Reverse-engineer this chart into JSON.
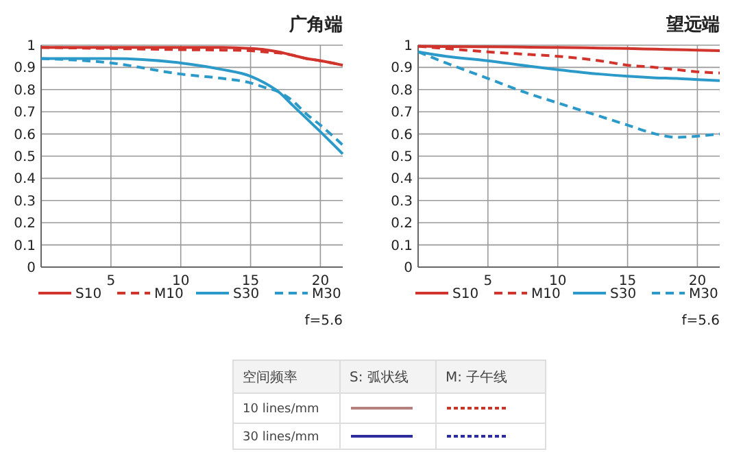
{
  "chart_data": [
    {
      "type": "line",
      "title": "广角端",
      "annotations": [
        "f=5.6"
      ],
      "x": [
        0,
        5,
        10,
        13,
        15,
        16,
        17,
        18,
        19,
        20,
        21.6
      ],
      "xlim": [
        0,
        21.6
      ],
      "xticks": [
        5,
        10,
        15,
        20
      ],
      "ylim": [
        0,
        1
      ],
      "yticks": [
        0,
        0.1,
        0.2,
        0.3,
        0.4,
        0.5,
        0.6,
        0.7,
        0.8,
        0.9,
        1
      ],
      "grid": true,
      "legend": "bottom",
      "series": [
        {
          "name": "S10",
          "color": "#d0342c",
          "line_style": "solid",
          "values": [
            0.99,
            0.99,
            0.99,
            0.99,
            0.985,
            0.98,
            0.97,
            0.955,
            0.94,
            0.93,
            0.91
          ]
        },
        {
          "name": "M10",
          "color": "#d0342c",
          "line_style": "dashed",
          "values": [
            0.99,
            0.985,
            0.98,
            0.978,
            0.975,
            0.97,
            0.965,
            0.955,
            0.94,
            0.93,
            0.91
          ]
        },
        {
          "name": "S30",
          "color": "#2b9ac9",
          "line_style": "solid",
          "values": [
            0.94,
            0.94,
            0.92,
            0.89,
            0.86,
            0.83,
            0.79,
            0.73,
            0.67,
            0.61,
            0.51
          ]
        },
        {
          "name": "M30",
          "color": "#2b9ac9",
          "line_style": "dashed",
          "values": [
            0.94,
            0.92,
            0.87,
            0.85,
            0.83,
            0.81,
            0.79,
            0.75,
            0.69,
            0.64,
            0.55
          ]
        }
      ]
    },
    {
      "type": "line",
      "title": "望远端",
      "annotations": [
        "f=5.6"
      ],
      "x": [
        0,
        2,
        5,
        8,
        10,
        13,
        15,
        17,
        18.5,
        20,
        21.6
      ],
      "xlim": [
        0,
        21.6
      ],
      "xticks": [
        5,
        10,
        15,
        20
      ],
      "ylim": [
        0,
        1
      ],
      "yticks": [
        0,
        0.1,
        0.2,
        0.3,
        0.4,
        0.5,
        0.6,
        0.7,
        0.8,
        0.9,
        1
      ],
      "grid": true,
      "legend": "bottom",
      "series": [
        {
          "name": "S10",
          "color": "#d0342c",
          "line_style": "solid",
          "values": [
            0.995,
            0.994,
            0.993,
            0.991,
            0.99,
            0.987,
            0.985,
            0.982,
            0.98,
            0.978,
            0.975
          ]
        },
        {
          "name": "M10",
          "color": "#d0342c",
          "line_style": "dashed",
          "values": [
            0.995,
            0.985,
            0.97,
            0.958,
            0.95,
            0.93,
            0.91,
            0.9,
            0.89,
            0.88,
            0.875
          ]
        },
        {
          "name": "S30",
          "color": "#2b9ac9",
          "line_style": "solid",
          "values": [
            0.97,
            0.95,
            0.93,
            0.905,
            0.89,
            0.87,
            0.86,
            0.853,
            0.85,
            0.845,
            0.84
          ]
        },
        {
          "name": "M30",
          "color": "#2b9ac9",
          "line_style": "dashed",
          "values": [
            0.97,
            0.92,
            0.85,
            0.78,
            0.74,
            0.68,
            0.64,
            0.6,
            0.585,
            0.59,
            0.6
          ]
        }
      ]
    },
    {
      "type": "other",
      "annotations": [
        "空间频率",
        "S: 弧状线",
        "M: 子午线",
        "10 lines/mm",
        "30 lines/mm"
      ]
    }
  ]
}
